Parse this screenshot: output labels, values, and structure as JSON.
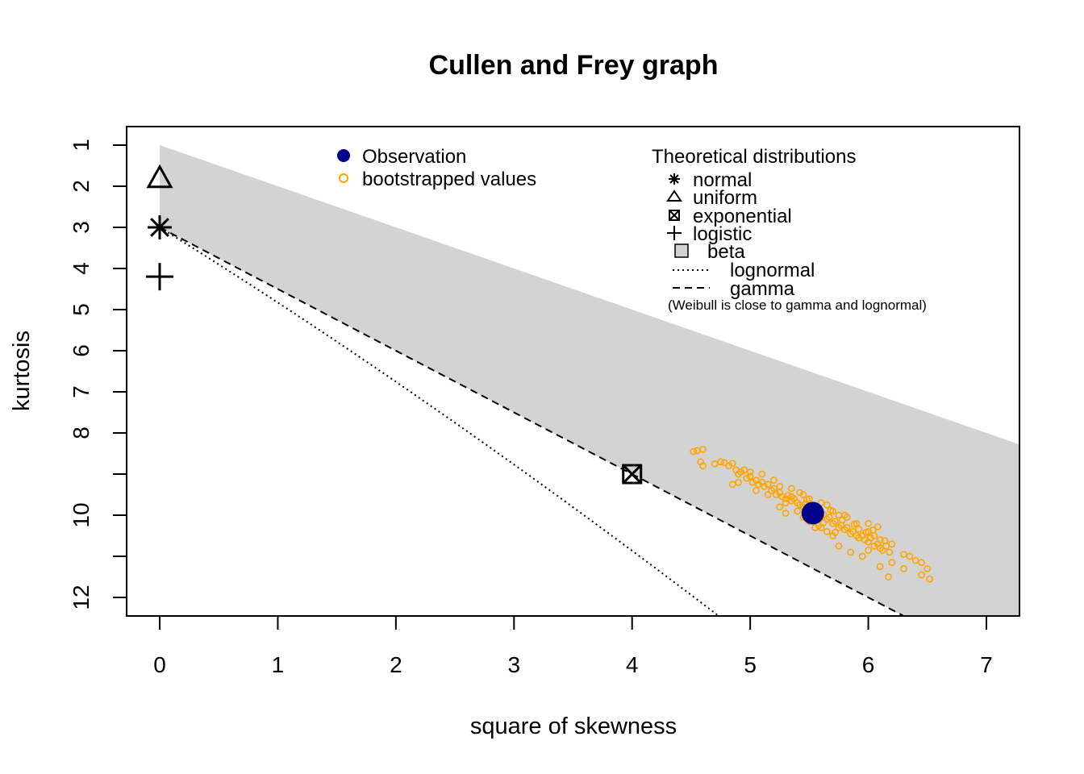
{
  "chart_data": {
    "type": "scatter",
    "title": "Cullen and Frey graph",
    "xlabel": "square of skewness",
    "ylabel": "kurtosis",
    "xlim": [
      -0.28,
      7.28
    ],
    "ylim": [
      12.45,
      0.55
    ],
    "y_axis_reversed": true,
    "grid": false,
    "x_ticks": [
      0,
      1,
      2,
      3,
      4,
      5,
      6,
      7
    ],
    "y_ticks": [
      1,
      2,
      3,
      4,
      5,
      6,
      7,
      8,
      10,
      12
    ],
    "y_tick_labels": [
      "1",
      "2",
      "3",
      "4",
      "5",
      "6",
      "7",
      "8",
      "10",
      "12"
    ],
    "observation": {
      "label": "Observation",
      "x": 5.53,
      "y": 9.95,
      "color": "#00008b"
    },
    "bootstrap": {
      "label": "bootstrapped values",
      "color": "#ffa500",
      "points": [
        [
          4.52,
          8.45
        ],
        [
          4.55,
          8.43
        ],
        [
          4.6,
          8.4
        ],
        [
          4.58,
          8.7
        ],
        [
          4.6,
          8.8
        ],
        [
          4.7,
          8.75
        ],
        [
          4.75,
          8.7
        ],
        [
          4.78,
          8.72
        ],
        [
          4.82,
          8.8
        ],
        [
          4.85,
          8.74
        ],
        [
          4.88,
          8.9
        ],
        [
          4.9,
          9.0
        ],
        [
          4.92,
          8.95
        ],
        [
          4.95,
          8.9
        ],
        [
          4.97,
          9.1
        ],
        [
          5.0,
          9.05
        ],
        [
          5.02,
          9.2
        ],
        [
          5.05,
          9.15
        ],
        [
          5.07,
          9.25
        ],
        [
          5.1,
          9.2
        ],
        [
          5.12,
          9.3
        ],
        [
          5.15,
          9.25
        ],
        [
          5.18,
          9.4
        ],
        [
          5.2,
          9.35
        ],
        [
          5.22,
          9.5
        ],
        [
          5.25,
          9.45
        ],
        [
          5.27,
          9.55
        ],
        [
          5.3,
          9.6
        ],
        [
          5.32,
          9.52
        ],
        [
          5.35,
          9.65
        ],
        [
          5.37,
          9.6
        ],
        [
          5.4,
          9.7
        ],
        [
          5.42,
          9.75
        ],
        [
          5.45,
          9.8
        ],
        [
          5.47,
          9.72
        ],
        [
          5.5,
          9.9
        ],
        [
          5.52,
          9.85
        ],
        [
          5.55,
          9.95
        ],
        [
          5.57,
          10.0
        ],
        [
          5.6,
          10.05
        ],
        [
          5.62,
          9.98
        ],
        [
          5.65,
          10.1
        ],
        [
          5.67,
          10.05
        ],
        [
          5.7,
          10.2
        ],
        [
          5.72,
          10.15
        ],
        [
          5.75,
          10.3
        ],
        [
          5.77,
          10.25
        ],
        [
          5.8,
          10.35
        ],
        [
          5.82,
          10.3
        ],
        [
          5.85,
          10.45
        ],
        [
          5.87,
          10.4
        ],
        [
          5.9,
          10.5
        ],
        [
          5.92,
          10.55
        ],
        [
          5.95,
          10.5
        ],
        [
          5.97,
          10.6
        ],
        [
          6.0,
          10.65
        ],
        [
          6.02,
          10.55
        ],
        [
          6.05,
          10.75
        ],
        [
          6.08,
          10.7
        ],
        [
          6.1,
          10.8
        ],
        [
          6.12,
          10.85
        ],
        [
          6.15,
          10.75
        ],
        [
          6.18,
          10.9
        ],
        [
          6.3,
          10.95
        ],
        [
          6.35,
          11.0
        ],
        [
          6.4,
          11.1
        ],
        [
          6.45,
          11.15
        ],
        [
          6.5,
          11.3
        ],
        [
          6.52,
          11.55
        ],
        [
          6.45,
          11.45
        ],
        [
          6.3,
          11.3
        ],
        [
          6.2,
          11.15
        ],
        [
          6.17,
          11.5
        ],
        [
          6.1,
          11.25
        ],
        [
          6.0,
          10.85
        ],
        [
          5.95,
          11.0
        ],
        [
          5.85,
          10.9
        ],
        [
          5.75,
          10.75
        ],
        [
          5.7,
          10.5
        ],
        [
          5.65,
          10.4
        ],
        [
          5.6,
          10.3
        ],
        [
          5.58,
          10.25
        ],
        [
          5.8,
          10.0
        ],
        [
          5.82,
          10.05
        ],
        [
          5.35,
          9.35
        ],
        [
          5.25,
          9.3
        ],
        [
          5.2,
          9.15
        ],
        [
          5.1,
          9.0
        ],
        [
          5.0,
          8.95
        ],
        [
          4.9,
          9.2
        ],
        [
          4.85,
          9.25
        ],
        [
          5.05,
          9.4
        ],
        [
          5.15,
          9.5
        ],
        [
          5.3,
          9.7
        ],
        [
          5.4,
          9.9
        ],
        [
          5.45,
          9.5
        ],
        [
          5.6,
          9.7
        ],
        [
          5.65,
          9.75
        ],
        [
          5.7,
          9.9
        ],
        [
          5.75,
          10.0
        ],
        [
          5.9,
          10.2
        ],
        [
          6.0,
          10.4
        ],
        [
          6.05,
          10.5
        ],
        [
          6.1,
          10.6
        ],
        [
          5.55,
          10.3
        ],
        [
          5.5,
          10.15
        ],
        [
          5.45,
          10.05
        ],
        [
          5.3,
          9.95
        ],
        [
          5.25,
          9.8
        ],
        [
          5.35,
          9.55
        ],
        [
          5.48,
          9.62
        ],
        [
          5.58,
          9.82
        ],
        [
          5.68,
          9.88
        ],
        [
          5.78,
          10.12
        ],
        [
          5.88,
          10.22
        ],
        [
          5.92,
          10.34
        ],
        [
          5.98,
          10.42
        ],
        [
          6.04,
          10.36
        ],
        [
          6.14,
          10.62
        ],
        [
          6.2,
          10.7
        ],
        [
          6.0,
          10.2
        ],
        [
          6.08,
          10.28
        ],
        [
          5.62,
          10.18
        ],
        [
          5.72,
          10.42
        ],
        [
          5.5,
          9.6
        ],
        [
          5.42,
          9.45
        ]
      ]
    },
    "theoretical": {
      "heading": "Theoretical distributions",
      "normal": {
        "label": "normal",
        "x": 0,
        "y": 3
      },
      "uniform": {
        "label": "uniform",
        "x": 0,
        "y": 1.8
      },
      "exponential": {
        "label": "exponential",
        "x": 4,
        "y": 9
      },
      "logistic": {
        "label": "logistic",
        "x": 0,
        "y": 4.2
      },
      "beta": {
        "label": "beta",
        "color": "#d3d3d3"
      },
      "lognormal": {
        "label": "lognormal"
      },
      "gamma": {
        "label": "gamma"
      },
      "note": "(Weibull is close to gamma and lognormal)"
    }
  }
}
